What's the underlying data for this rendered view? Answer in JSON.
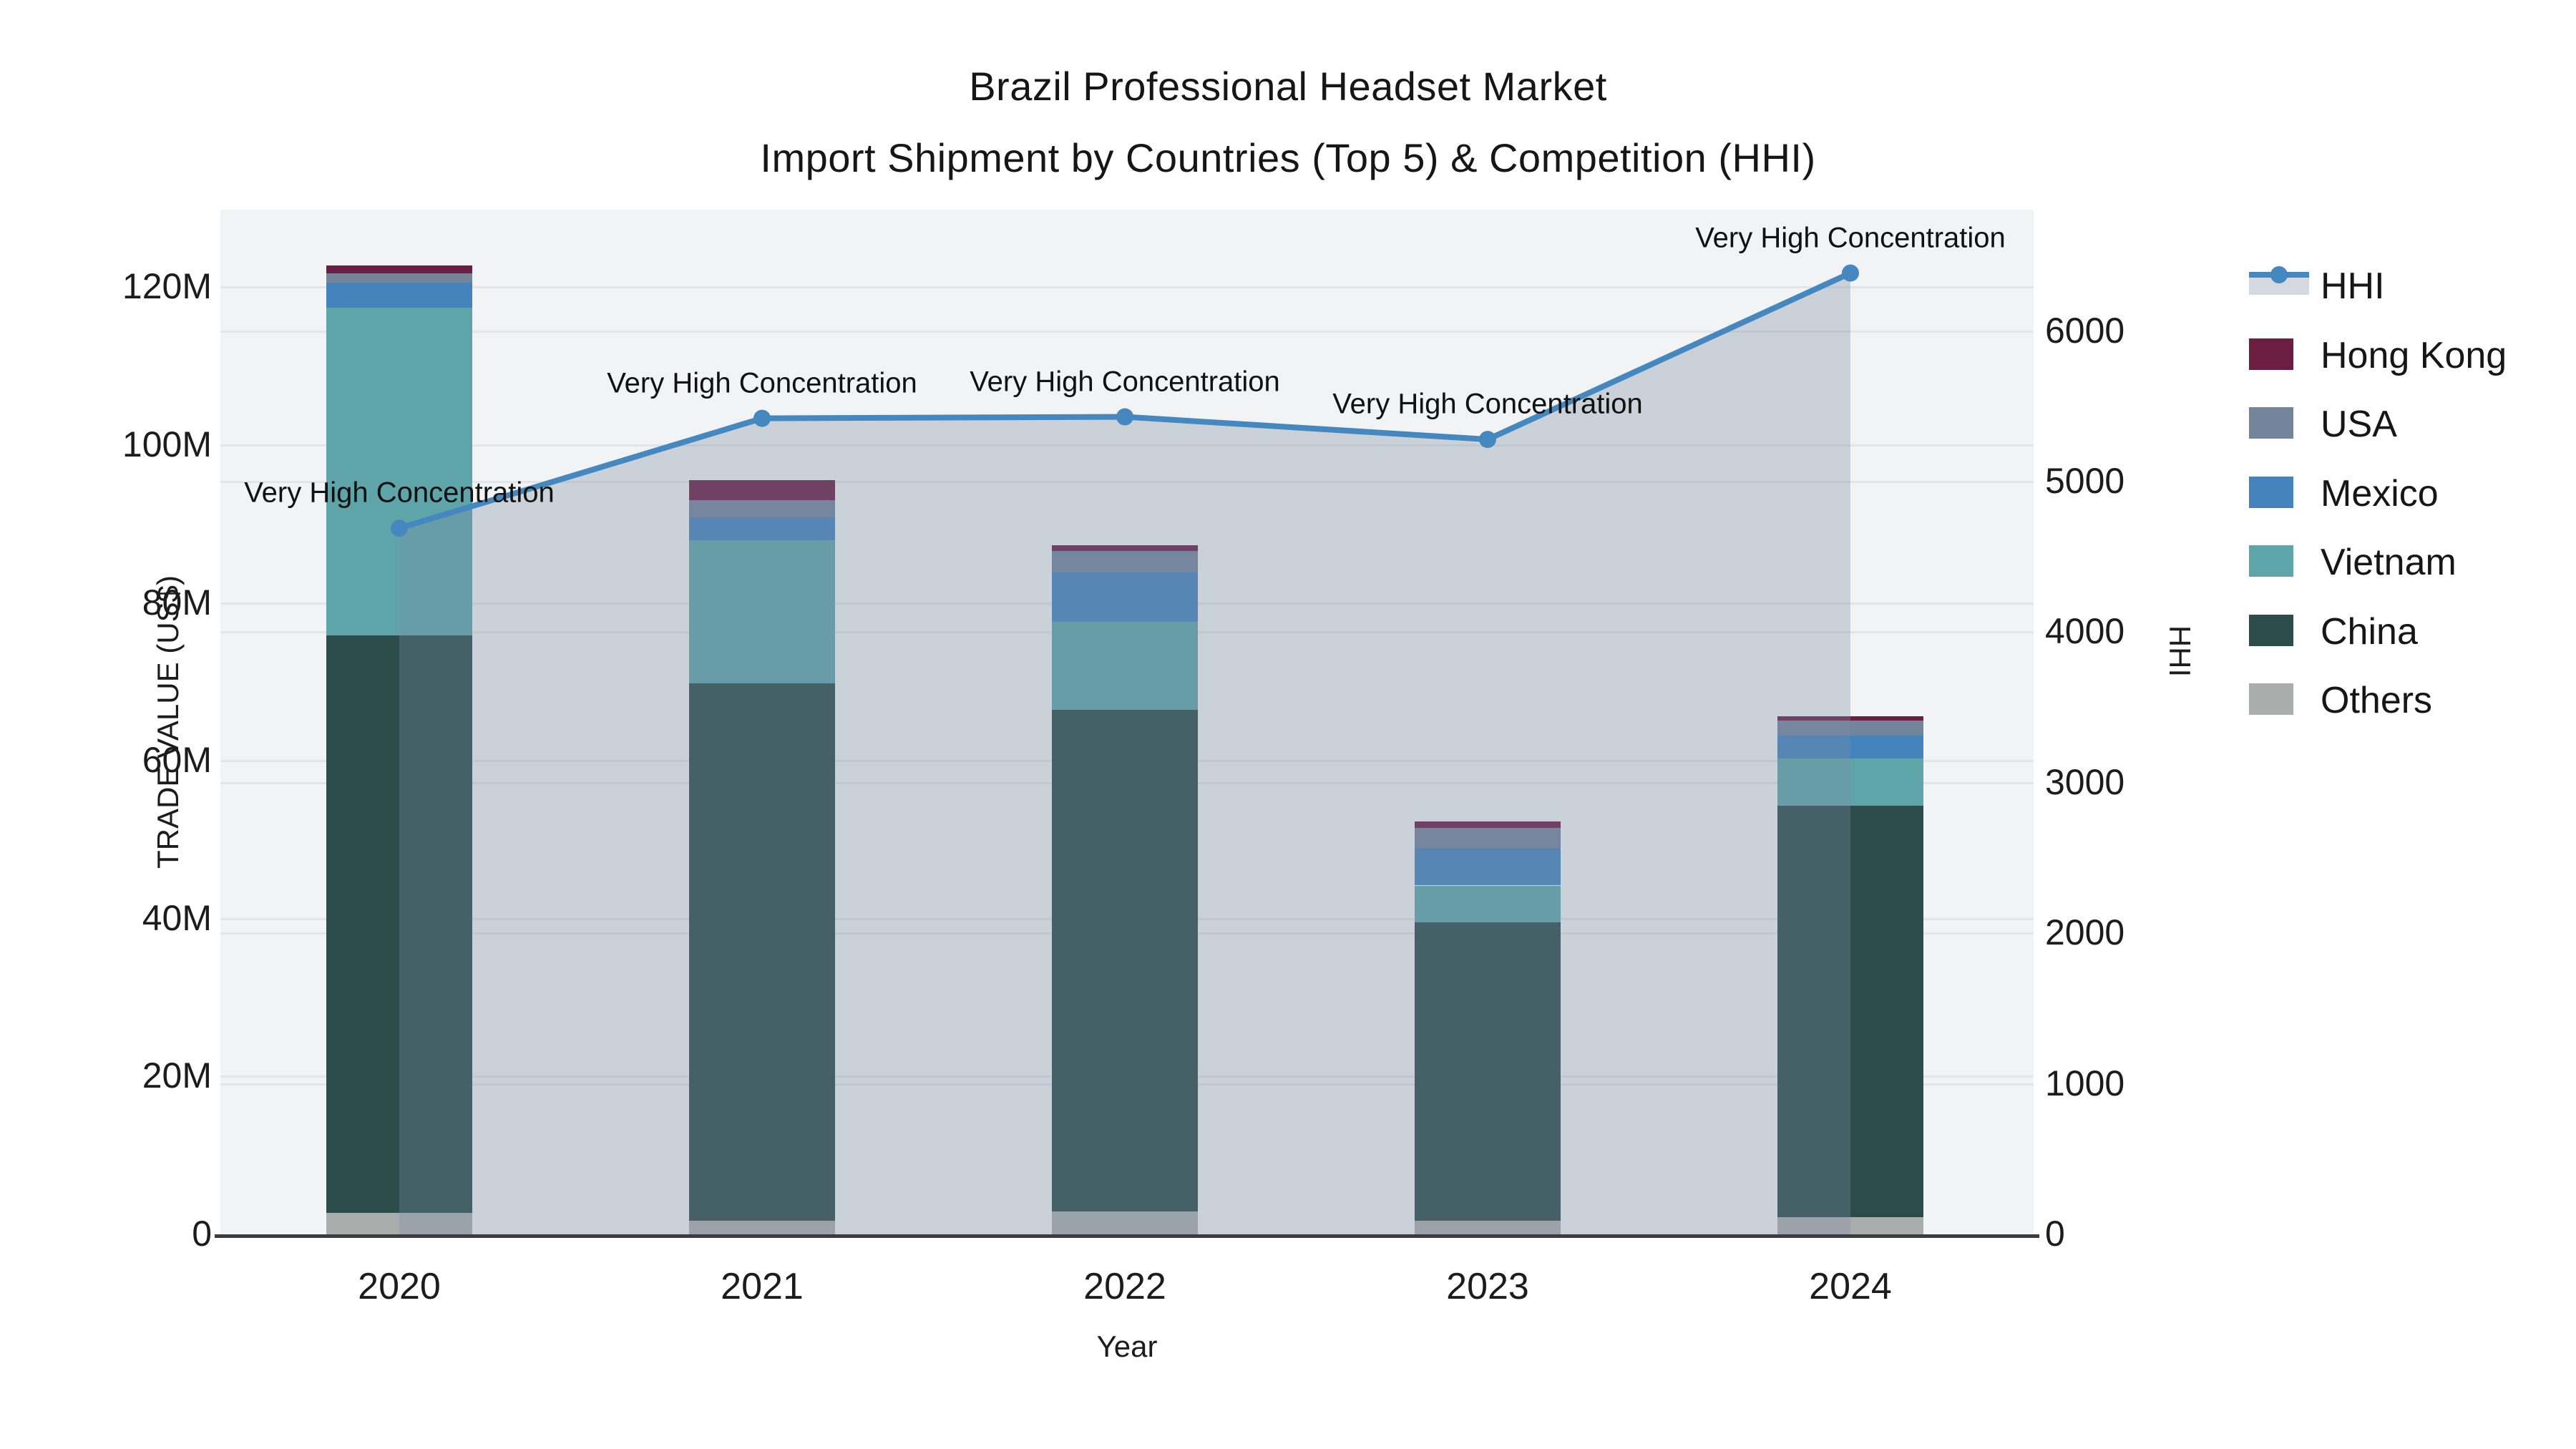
{
  "title": {
    "line1": "Brazil Professional Headset Market",
    "line2": "Import Shipment by Countries (Top 5) & Competition (HHI)"
  },
  "axes": {
    "left": {
      "title": "TRADE VALUE (US$)",
      "tick_labels": [
        "0",
        "20M",
        "40M",
        "60M",
        "80M",
        "100M",
        "120M"
      ],
      "tick_values_m": [
        0,
        20,
        40,
        60,
        80,
        100,
        120
      ]
    },
    "right": {
      "title": "HHI",
      "tick_labels": [
        "0",
        "1000",
        "2000",
        "3000",
        "4000",
        "5000",
        "6000"
      ],
      "tick_values": [
        0,
        1000,
        2000,
        3000,
        4000,
        5000,
        6000
      ]
    },
    "x": {
      "title": "Year",
      "tick_labels": [
        "2020",
        "2021",
        "2022",
        "2023",
        "2024"
      ]
    }
  },
  "legend": {
    "items": [
      {
        "label": "HHI",
        "type": "line",
        "color": "#4587BF"
      },
      {
        "label": "Hong Kong",
        "type": "box",
        "color": "#6B1D42"
      },
      {
        "label": "USA",
        "type": "box",
        "color": "#73849B"
      },
      {
        "label": "Mexico",
        "type": "box",
        "color": "#4583BC"
      },
      {
        "label": "Vietnam",
        "type": "box",
        "color": "#5EA4A8"
      },
      {
        "label": "China",
        "type": "box",
        "color": "#2C4B4B"
      },
      {
        "label": "Others",
        "type": "box",
        "color": "#ABADAC"
      }
    ]
  },
  "colors": {
    "plot_bg": "#f2f3f4",
    "gridline": "#e3e5e7",
    "axis_line": "#3d3d3d",
    "hhi_line": "#4587BF",
    "hhi_fill": "#7D8CA5",
    "hhi_fill_opacity": 0.33
  },
  "chart_data": {
    "type": "bar+line combo (stacked bars, secondary-axis line with area fill)",
    "categories": [
      "2020",
      "2021",
      "2022",
      "2023",
      "2024"
    ],
    "bar_unit": "million US$",
    "stack_order_bottom_to_top": [
      "Others",
      "China",
      "Vietnam",
      "Mexico",
      "USA",
      "Hong Kong"
    ],
    "series": [
      {
        "name": "Others",
        "color": "#ABADAC",
        "values": [
          2.7,
          1.7,
          2.9,
          1.75,
          2.2
        ]
      },
      {
        "name": "China",
        "color": "#2C4B4B",
        "values": [
          73.2,
          68.1,
          63.6,
          37.75,
          52.1
        ]
      },
      {
        "name": "Vietnam",
        "color": "#5EA4A8",
        "values": [
          41.5,
          18.1,
          11.1,
          4.7,
          6.0
        ]
      },
      {
        "name": "Mexico",
        "color": "#4583BC",
        "values": [
          3.2,
          2.9,
          6.3,
          4.8,
          2.9
        ]
      },
      {
        "name": "USA",
        "color": "#73849B",
        "values": [
          1.2,
          2.2,
          2.7,
          2.5,
          1.9
        ]
      },
      {
        "name": "Hong Kong",
        "color": "#6B1D42",
        "values": [
          1.0,
          2.6,
          0.7,
          0.8,
          0.5
        ]
      }
    ],
    "bar_totals": [
      122.8,
      95.6,
      87.3,
      52.3,
      65.6
    ],
    "hhi_series": {
      "name": "HHI",
      "axis": "right",
      "values": [
        4690,
        5420,
        5430,
        5280,
        6385
      ]
    },
    "annotations": [
      {
        "text": "Very High Concentration",
        "category": "2020"
      },
      {
        "text": "Very High Concentration",
        "category": "2021"
      },
      {
        "text": "Very High Concentration",
        "category": "2022"
      },
      {
        "text": "Very High Concentration",
        "category": "2023"
      },
      {
        "text": "Very High Concentration",
        "category": "2024"
      }
    ],
    "left_axis_range_m": [
      0,
      129.8
    ],
    "right_axis_range": [
      0,
      6806
    ],
    "grid": "both axes, horizontal lines"
  }
}
